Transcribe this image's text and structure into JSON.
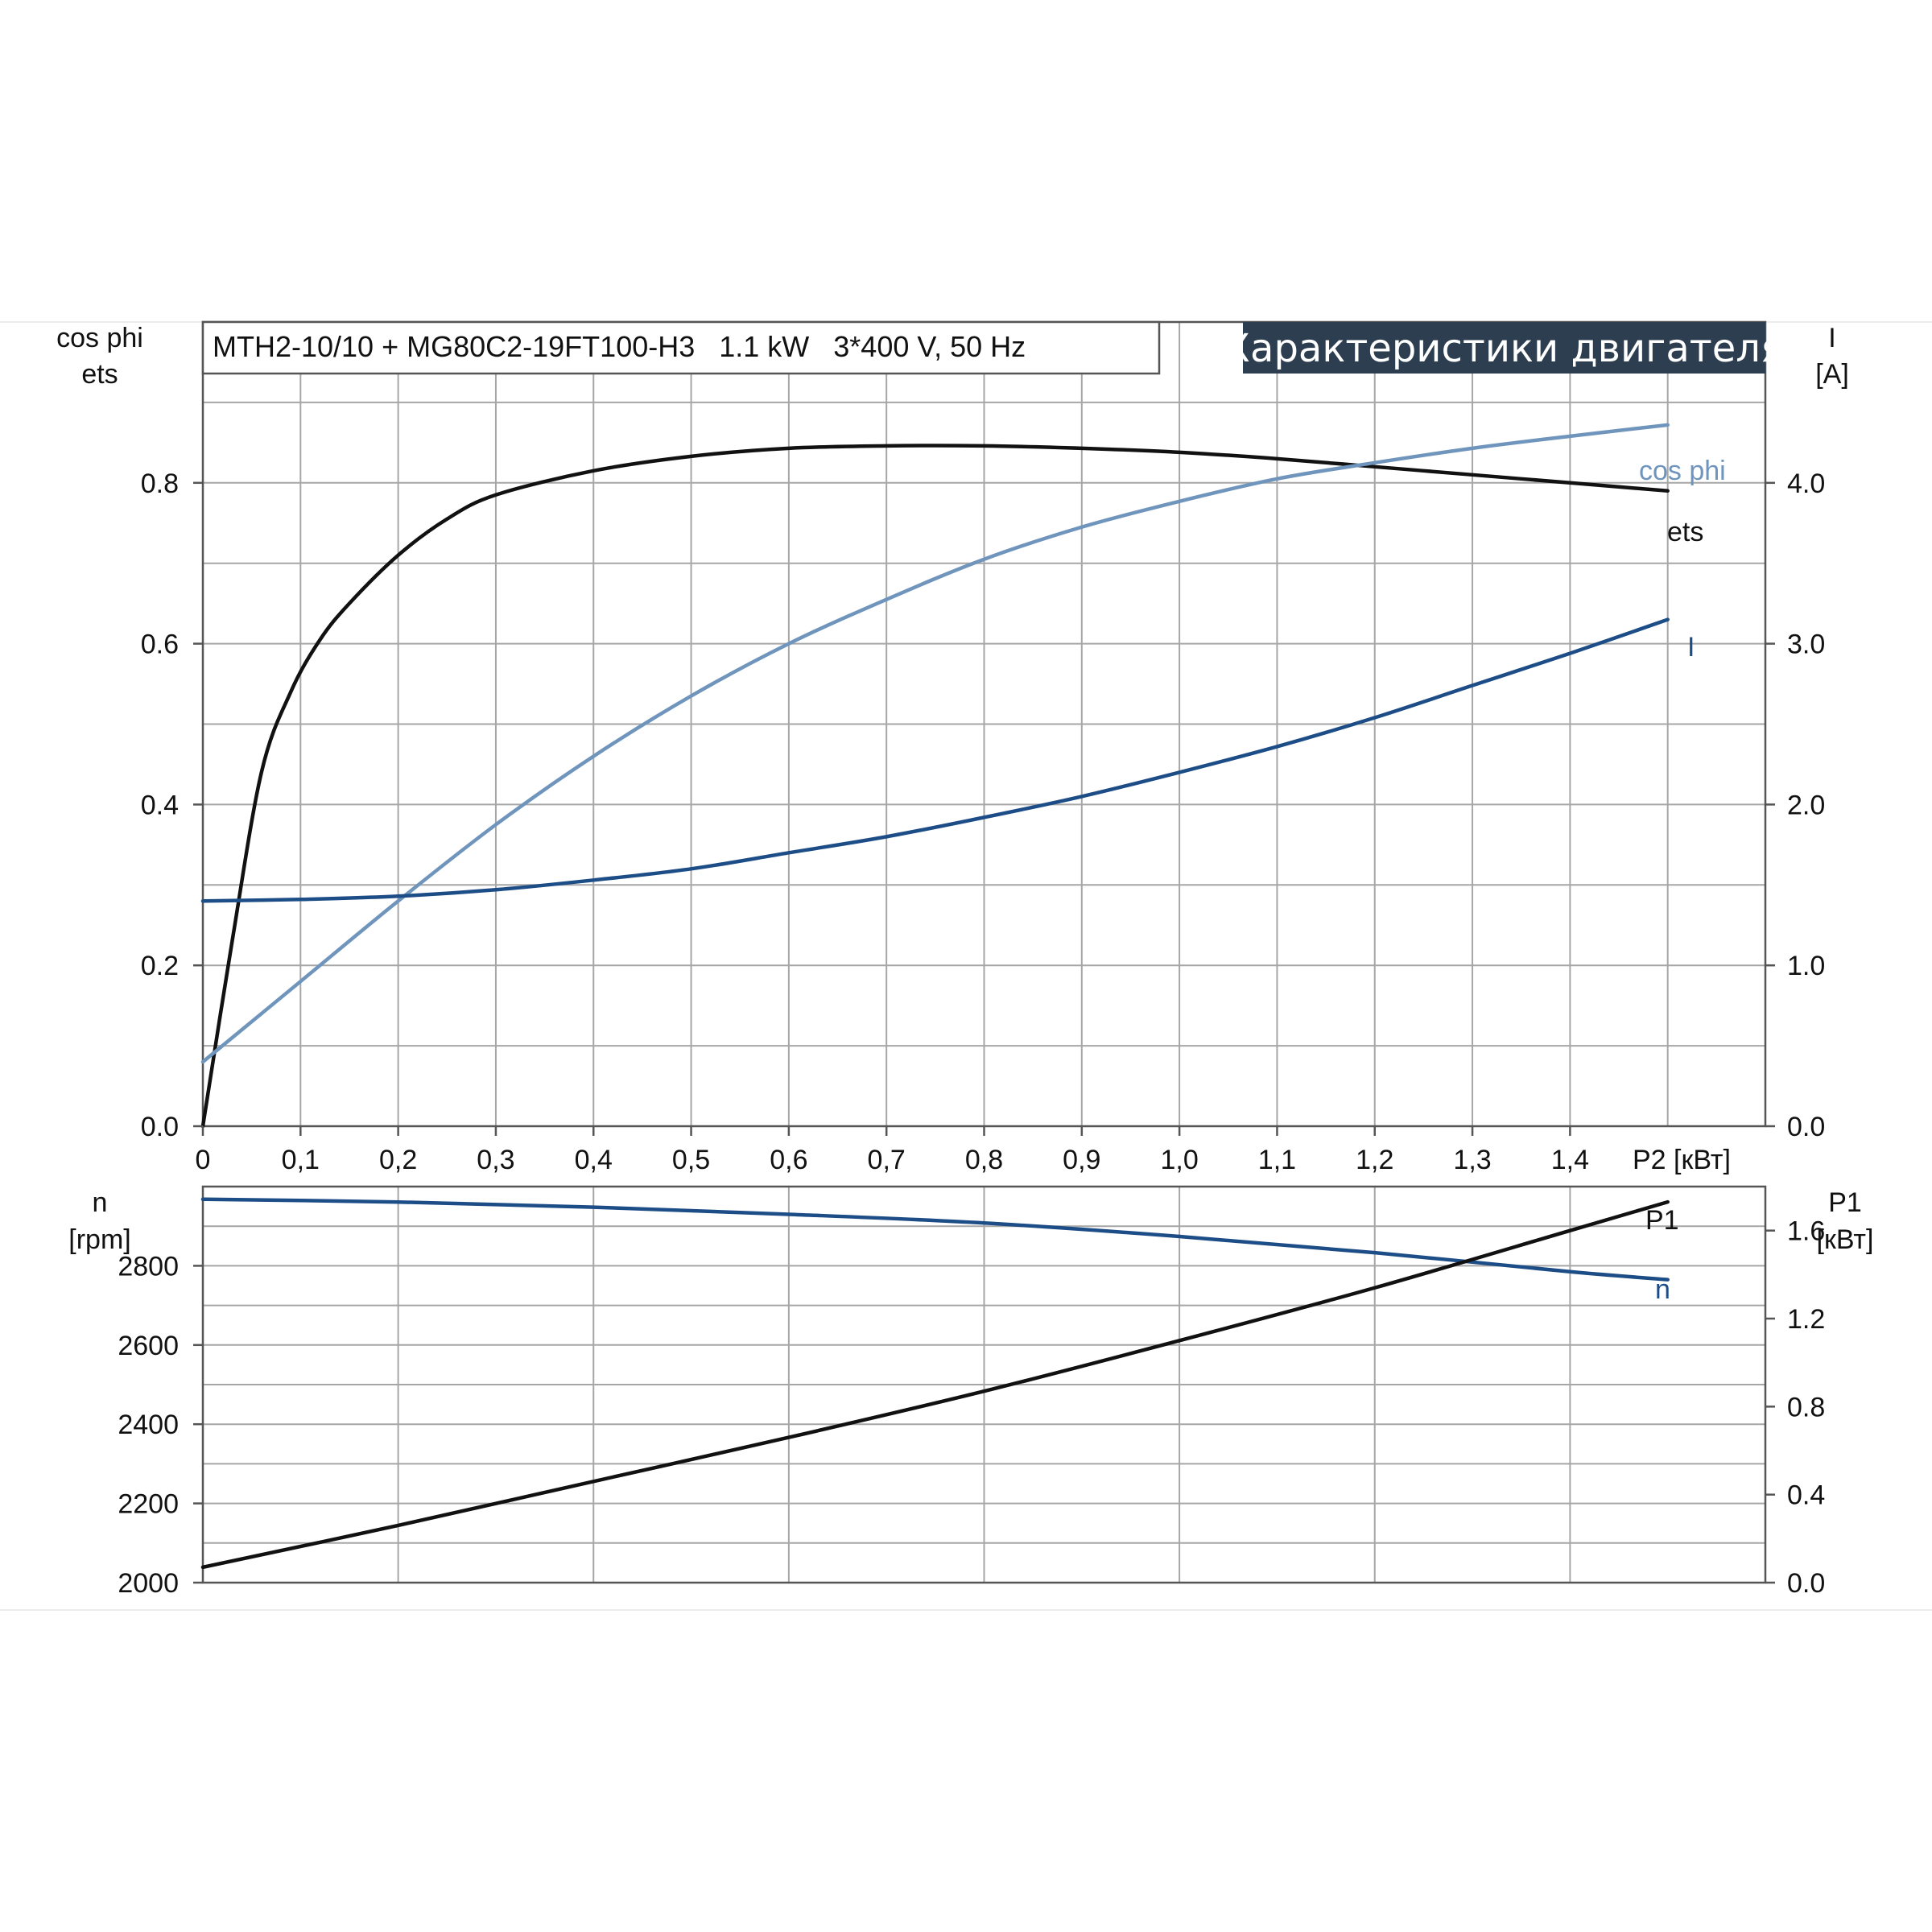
{
  "chart_data": [
    {
      "type": "line",
      "header": {
        "model": "MTH2-10/10 + MG80C2-19FT100-H3   1.1 kW   3*400 V, 50 Hz",
        "badge": "Характеристики двигателя"
      },
      "left_axis": {
        "label_line1": "cos phi",
        "label_line2": "ets",
        "ylim": [
          0,
          1.0
        ],
        "ticks": [
          "0.0",
          "0.2",
          "0.4",
          "0.6",
          "0.8"
        ],
        "tick_values": [
          0,
          0.2,
          0.4,
          0.6,
          0.8
        ]
      },
      "right_axis": {
        "label_line1": "I",
        "label_line2": "[A]",
        "ylim": [
          0,
          5.0
        ],
        "ticks": [
          "0.0",
          "1.0",
          "2.0",
          "3.0",
          "4.0"
        ],
        "tick_values": [
          0,
          1,
          2,
          3,
          4
        ]
      },
      "x_axis": {
        "label": "P2 [кВт]",
        "xlim": [
          0,
          1.6
        ],
        "ticks": [
          "0",
          "0,1",
          "0,2",
          "0,3",
          "0,4",
          "0,5",
          "0,6",
          "0,7",
          "0,8",
          "0,9",
          "1,0",
          "1,1",
          "1,2",
          "1,3",
          "1,4"
        ],
        "tick_values": [
          0,
          0.1,
          0.2,
          0.3,
          0.4,
          0.5,
          0.6,
          0.7,
          0.8,
          0.9,
          1.0,
          1.1,
          1.2,
          1.3,
          1.4
        ]
      },
      "grid": true,
      "series": [
        {
          "name": "ets",
          "axis": "left",
          "color": "#111111",
          "x": [
            0,
            0.03,
            0.06,
            0.09,
            0.12,
            0.15,
            0.2,
            0.25,
            0.3,
            0.4,
            0.5,
            0.6,
            0.7,
            0.8,
            0.9,
            1.0,
            1.1,
            1.2,
            1.3,
            1.4,
            1.5
          ],
          "y": [
            0,
            0.23,
            0.44,
            0.54,
            0.605,
            0.65,
            0.71,
            0.755,
            0.785,
            0.815,
            0.833,
            0.843,
            0.846,
            0.846,
            0.843,
            0.838,
            0.83,
            0.82,
            0.81,
            0.8,
            0.79
          ]
        },
        {
          "name": "cos phi",
          "axis": "left",
          "color": "#6f95bd",
          "x": [
            0,
            0.1,
            0.2,
            0.3,
            0.4,
            0.5,
            0.6,
            0.7,
            0.8,
            0.9,
            1.0,
            1.1,
            1.2,
            1.3,
            1.4,
            1.5
          ],
          "y": [
            0.08,
            0.18,
            0.28,
            0.375,
            0.46,
            0.535,
            0.6,
            0.655,
            0.705,
            0.745,
            0.777,
            0.805,
            0.825,
            0.843,
            0.858,
            0.872
          ]
        },
        {
          "name": "I",
          "axis": "right",
          "color": "#1d4d87",
          "x": [
            0,
            0.1,
            0.2,
            0.3,
            0.4,
            0.5,
            0.6,
            0.7,
            0.8,
            0.9,
            1.0,
            1.1,
            1.2,
            1.3,
            1.4,
            1.5
          ],
          "y": [
            1.4,
            1.41,
            1.43,
            1.47,
            1.53,
            1.6,
            1.7,
            1.8,
            1.92,
            2.05,
            2.2,
            2.36,
            2.54,
            2.74,
            2.94,
            3.15
          ]
        }
      ]
    },
    {
      "type": "line",
      "left_axis": {
        "label_line1": "n",
        "label_line2": "[rpm]",
        "ylim": [
          2000,
          3000
        ],
        "ticks": [
          "2000",
          "2200",
          "2400",
          "2600",
          "2800"
        ],
        "tick_values": [
          2000,
          2200,
          2400,
          2600,
          2800
        ]
      },
      "right_axis": {
        "label_line1": "P1",
        "label_line2": "[кВт]",
        "ylim": [
          0,
          1.8
        ],
        "ticks": [
          "0.0",
          "0.4",
          "0.8",
          "1.2",
          "1.6"
        ],
        "tick_values": [
          0,
          0.4,
          0.8,
          1.2,
          1.6
        ]
      },
      "x_axis": {
        "xlim": [
          0,
          1.6
        ]
      },
      "grid": true,
      "series": [
        {
          "name": "n",
          "axis": "left",
          "color": "#1d4d87",
          "x": [
            0,
            0.2,
            0.4,
            0.6,
            0.8,
            1.0,
            1.2,
            1.4,
            1.5
          ],
          "y": [
            2968,
            2961,
            2948,
            2930,
            2908,
            2874,
            2833,
            2785,
            2765
          ]
        },
        {
          "name": "P1",
          "axis": "right",
          "color": "#111111",
          "x": [
            0,
            0.2,
            0.4,
            0.6,
            0.8,
            1.0,
            1.2,
            1.4,
            1.5
          ],
          "y": [
            0.07,
            0.26,
            0.46,
            0.66,
            0.87,
            1.1,
            1.34,
            1.6,
            1.73
          ]
        }
      ]
    }
  ]
}
